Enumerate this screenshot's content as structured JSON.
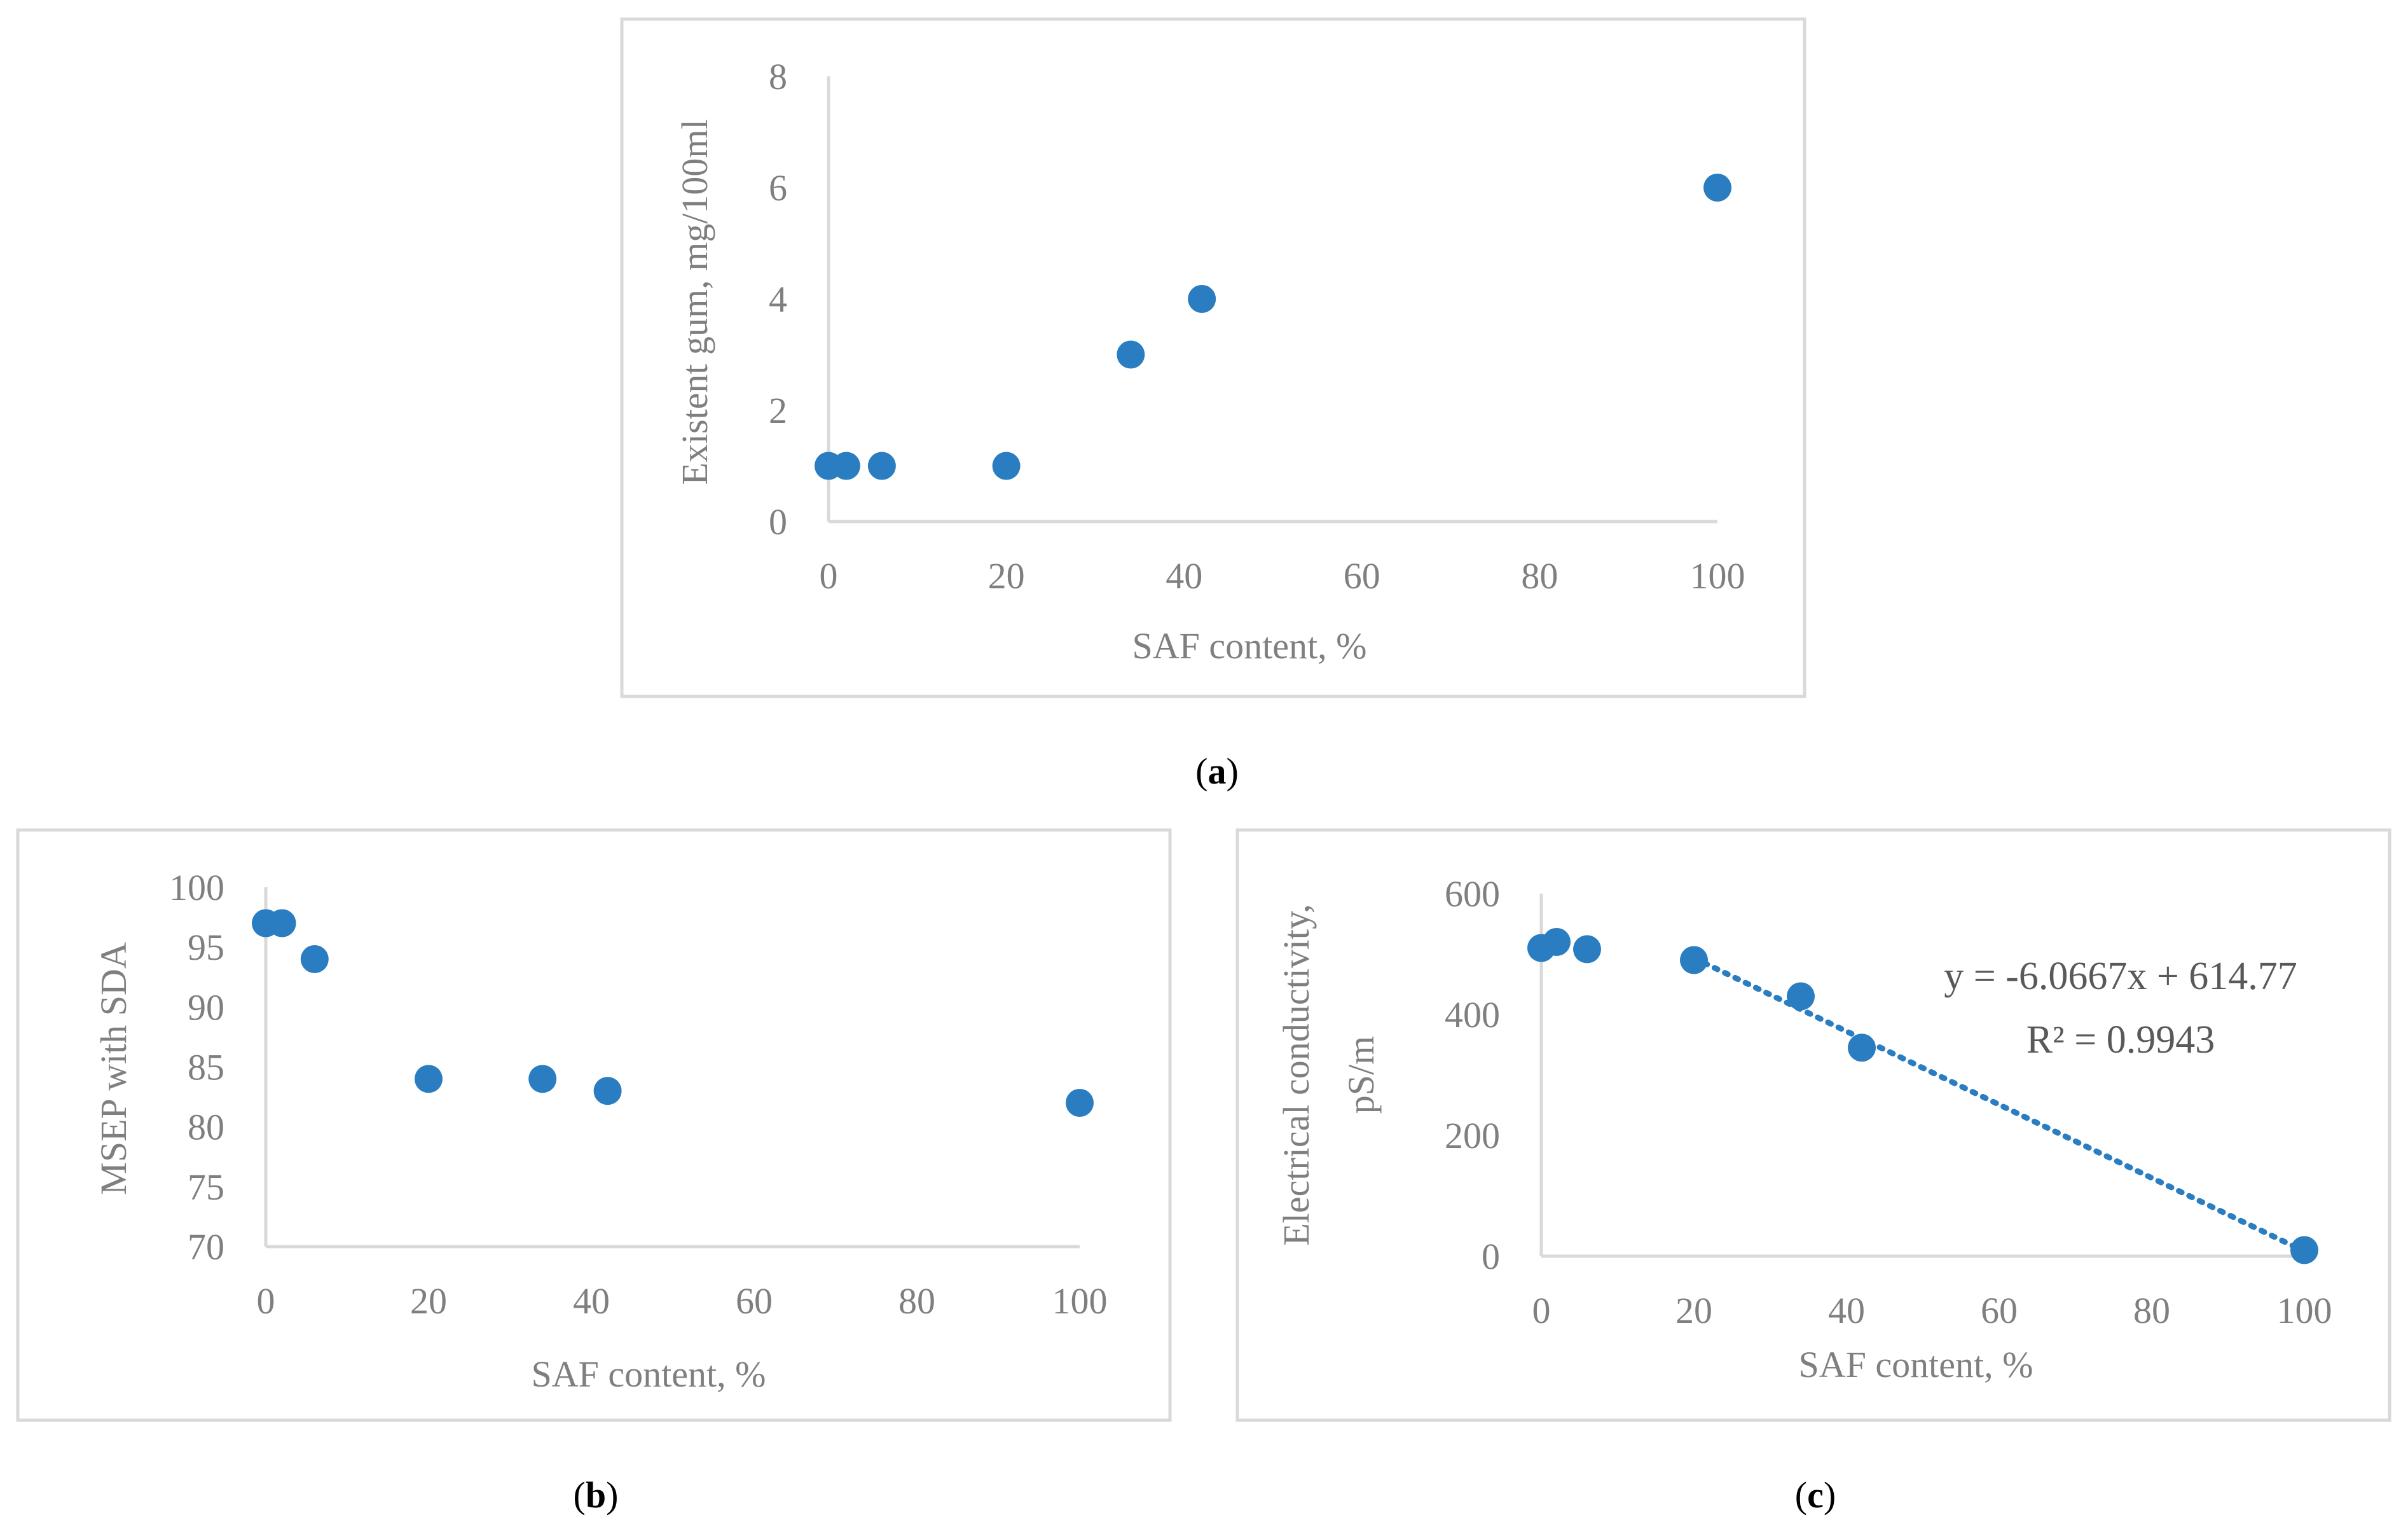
{
  "chart_data": [
    {
      "id": "a",
      "type": "scatter",
      "caption": "a",
      "xlabel": "SAF content, %",
      "ylabel": "Existent gum, mg/100ml",
      "xlim": [
        0,
        100
      ],
      "ylim": [
        0,
        8
      ],
      "xticks": [
        0,
        20,
        40,
        60,
        80,
        100
      ],
      "yticks": [
        0,
        2,
        4,
        6,
        8
      ],
      "grid": false,
      "x": [
        0,
        2,
        6,
        20,
        34,
        42,
        100
      ],
      "y": [
        1,
        1,
        1,
        1,
        3,
        4,
        6
      ],
      "color": "#2a7dc0"
    },
    {
      "id": "b",
      "type": "scatter",
      "caption": "b",
      "xlabel": "SAF content, %",
      "ylabel": "MSEP with SDA",
      "xlim": [
        0,
        100
      ],
      "ylim": [
        70,
        100
      ],
      "xticks": [
        0,
        20,
        40,
        60,
        80,
        100
      ],
      "yticks": [
        70,
        75,
        80,
        85,
        90,
        95,
        100
      ],
      "grid": false,
      "x": [
        0,
        2,
        6,
        20,
        34,
        42,
        100
      ],
      "y": [
        97,
        97,
        94,
        84,
        84,
        83,
        82
      ],
      "color": "#2a7dc0"
    },
    {
      "id": "c",
      "type": "scatter",
      "caption": "c",
      "xlabel": "SAF content, %",
      "ylabel_lines": [
        "Electrical conductivity,",
        "pS/m"
      ],
      "xlim": [
        0,
        100
      ],
      "ylim": [
        0,
        600
      ],
      "xticks": [
        0,
        20,
        40,
        60,
        80,
        100
      ],
      "yticks": [
        0,
        200,
        400,
        600
      ],
      "grid": false,
      "x": [
        0,
        2,
        6,
        20,
        34,
        42,
        100
      ],
      "y": [
        510,
        520,
        508,
        490,
        430,
        345,
        10
      ],
      "color": "#2a7dc0",
      "trendline": {
        "type": "linear",
        "slope": -6.0667,
        "intercept": 614.77,
        "x_range": [
          20,
          100
        ],
        "equation": "y = -6.0667x + 614.77",
        "r_squared": "R² = 0.9943"
      }
    }
  ]
}
